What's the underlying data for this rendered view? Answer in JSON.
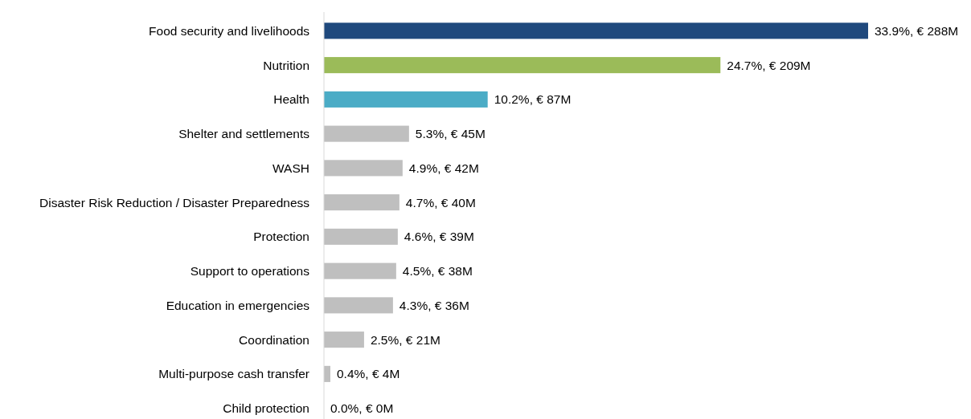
{
  "chart_data": {
    "type": "bar",
    "orientation": "horizontal",
    "categories": [
      "Food security and livelihoods",
      "Nutrition",
      "Health",
      "Shelter and settlements",
      "WASH",
      "Disaster Risk Reduction / Disaster Preparedness",
      "Protection",
      "Support to operations",
      "Education in emergencies",
      "Coordination",
      "Multi-purpose cash transfer",
      "Child protection"
    ],
    "values": [
      33.9,
      24.7,
      10.2,
      5.3,
      4.9,
      4.7,
      4.6,
      4.5,
      4.3,
      2.5,
      0.4,
      0.0
    ],
    "colors": [
      "#1f497d",
      "#9bbb59",
      "#4bacc6",
      "#bfbfbf",
      "#bfbfbf",
      "#bfbfbf",
      "#bfbfbf",
      "#bfbfbf",
      "#bfbfbf",
      "#bfbfbf",
      "#bfbfbf",
      "#bfbfbf"
    ],
    "value_labels": [
      "33.9%, € 288M",
      "24.7%, € 209M",
      "10.2%, € 87M",
      "5.3%, € 45M",
      "4.9%, € 42M",
      "4.7%, € 40M",
      "4.6%, € 39M",
      "4.5%, € 38M",
      "4.3%, € 36M",
      "2.5%, € 21M",
      "0.4%, € 4M",
      "0.0%, € 0M"
    ],
    "data_labels": false
  }
}
